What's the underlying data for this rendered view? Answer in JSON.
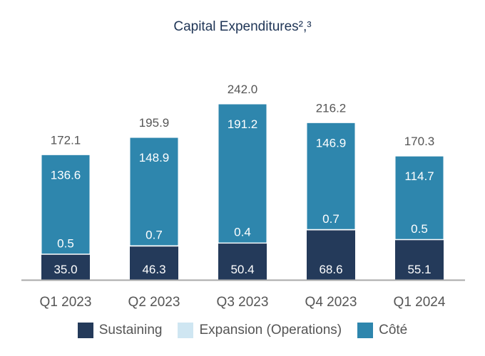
{
  "chart_data": {
    "type": "bar",
    "stacked": true,
    "title": "Capital Expenditures²,³",
    "categories": [
      "Q1 2023",
      "Q2 2023",
      "Q3 2023",
      "Q4 2023",
      "Q1 2024"
    ],
    "series": [
      {
        "name": "Sustaining",
        "values": [
          35.0,
          46.3,
          50.4,
          68.6,
          55.1
        ],
        "color": "#243a5a"
      },
      {
        "name": "Expansion (Operations)",
        "values": [
          0.5,
          0.7,
          0.4,
          0.7,
          0.5
        ],
        "color": "#cfe6f2"
      },
      {
        "name": "Côté",
        "values": [
          136.6,
          148.9,
          191.2,
          146.9,
          114.7
        ],
        "color": "#2e86ad"
      }
    ],
    "totals": [
      172.1,
      195.9,
      242.0,
      216.2,
      170.3
    ],
    "xlabel": "",
    "ylabel": "",
    "ylim": [
      0,
      242
    ],
    "grid": false,
    "legend": "bottom"
  }
}
